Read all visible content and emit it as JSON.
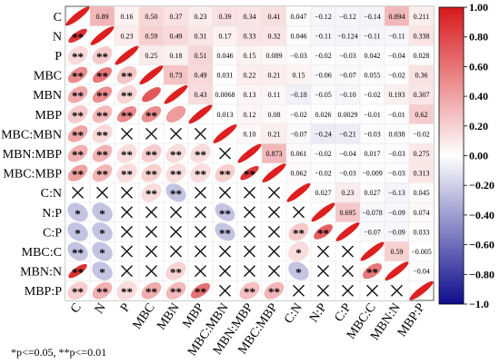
{
  "chart_data": {
    "type": "heatmap",
    "subtype": "correlation-matrix",
    "variables": [
      "C",
      "N",
      "P",
      "MBC",
      "MBN",
      "MBP",
      "MBC:MBN",
      "MBN:MBP",
      "MBC:MBP",
      "C:N",
      "N:P",
      "C:P",
      "MBC:C",
      "MBN:N",
      "MBP:P"
    ],
    "upper_triangle_values": [
      [
        "0.89",
        "0.16",
        "0.50",
        "0.37",
        "0.23",
        "0.39",
        "0.34",
        "0.41",
        "0.047",
        "−0.12",
        "−0.12",
        "−0.14",
        "0.894",
        "0.211"
      ],
      [
        "0.23",
        "0.59",
        "0.49",
        "0.31",
        "0.17",
        "0.33",
        "0.32",
        "0.046",
        "−0.11",
        "−0.124",
        "−0.11",
        "−0.11",
        "0.338"
      ],
      [
        "0.25",
        "0.18",
        "0.51",
        "0.046",
        "0.15",
        "0.089",
        "−0.03",
        "−0.02",
        "−0.03",
        "0.042",
        "−0.04",
        "0.028"
      ],
      [
        "0.73",
        "0.49",
        "0.031",
        "0.22",
        "0.21",
        "0.15",
        "−0.06",
        "−0.07",
        "0.055",
        "−0.02",
        "0.36"
      ],
      [
        "0.43",
        "0.0068",
        "0.13",
        "0.11",
        "−0.18",
        "−0.05",
        "−0.10",
        "−0.02",
        "0.193",
        "0.307"
      ],
      [
        "0.013",
        "0.12",
        "0.08",
        "−0.02",
        "0.026",
        "0.0029",
        "−0.01",
        "−0.01",
        "0.62"
      ],
      [
        "0.10",
        "0.21",
        "−0.07",
        "−0.24",
        "−0.21",
        "−0.03",
        "0.038",
        "−0.02"
      ],
      [
        "0.873",
        "0.061",
        "−0.02",
        "−0.04",
        "0.017",
        "−0.03",
        "0.275"
      ],
      [
        "0.062",
        "−0.02",
        "−0.03",
        "−0.009",
        "−0.03",
        "0.313"
      ],
      [
        "0.027",
        "0.23",
        "0.027",
        "−0.13",
        "0.045"
      ],
      [
        "0.695",
        "−0.078",
        "−0.09",
        "0.074"
      ],
      [
        "−0.07",
        "−0.09",
        "0.033"
      ],
      [
        "0.59",
        "−0.005"
      ],
      [
        "−0.04"
      ]
    ],
    "lower_triangle_significance": [
      [
        "**"
      ],
      [
        "**",
        "**"
      ],
      [
        "**",
        "**",
        "**"
      ],
      [
        "**",
        "**",
        "**",
        ""
      ],
      [
        "**",
        "**",
        "**",
        "**",
        ""
      ],
      [
        "**",
        "**",
        "x",
        "x",
        "x",
        "x"
      ],
      [
        "**",
        "**",
        "**",
        "**",
        "**",
        "**",
        "x"
      ],
      [
        "**",
        "**",
        "**",
        "**",
        "**",
        "**",
        "**",
        "**"
      ],
      [
        "x",
        "x",
        "x",
        "**",
        "**",
        "x",
        "x",
        "x",
        "x"
      ],
      [
        "*",
        "*",
        "x",
        "x",
        "x",
        "x",
        "**",
        "x",
        "x",
        "x"
      ],
      [
        "*",
        "*",
        "x",
        "x",
        "x",
        "x",
        "**",
        "x",
        "x",
        "**",
        "**"
      ],
      [
        "**",
        "*",
        "x",
        "x",
        "x",
        "x",
        "x",
        "x",
        "x",
        "*",
        "x",
        "x"
      ],
      [
        "**",
        "*",
        "x",
        "x",
        "**",
        "x",
        "x",
        "x",
        "x",
        "*",
        "x",
        "x",
        "**"
      ],
      [
        "**",
        "**",
        "**",
        "**",
        "**",
        "**",
        "x",
        "**",
        "**",
        "x",
        "x",
        "x",
        "x",
        "x"
      ]
    ],
    "colorbar": {
      "range": [
        -1.0,
        1.0
      ],
      "ticks": [
        "1.00",
        "0.80",
        "0.60",
        "0.40",
        "0.20",
        "0.00",
        "−0.20",
        "−0.40",
        "−0.60",
        "−0.80",
        "−1.0"
      ],
      "positive_color": "#d7191c",
      "neutral_color": "#ffffff",
      "negative_color": "#0d0d8c"
    },
    "note": "*p<=0.05, **p<=0.01"
  }
}
